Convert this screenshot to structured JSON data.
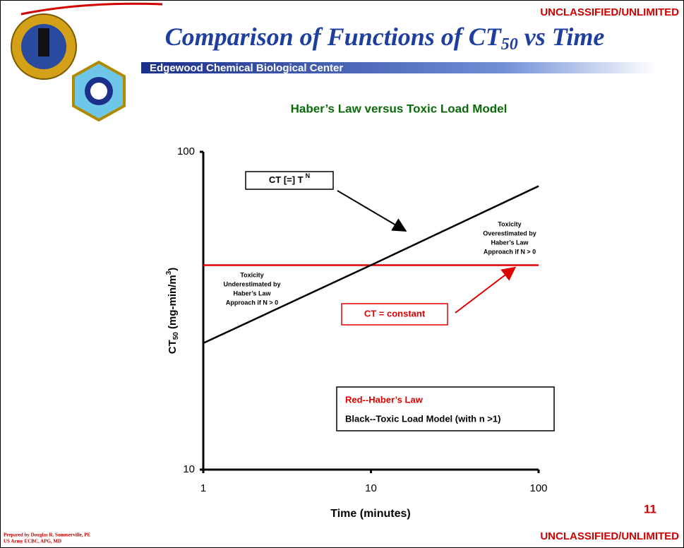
{
  "header": {
    "classification": "UNCLASSIFIED/UNLIMITED",
    "title": [
      "Comparison of Functions of CT",
      "50",
      " vs Time"
    ],
    "organization": "Edgewood Chemical Biological Center"
  },
  "chart_data": {
    "type": "line",
    "title": "Haber’s Law versus Toxic Load Model",
    "x": [
      1,
      10,
      100
    ],
    "series": [
      {
        "name": "Red--Haber’s Law",
        "color": "#e00000",
        "values": [
          44,
          44,
          44
        ]
      },
      {
        "name": "Black--Toxic Load Model (with n >1)",
        "color": "#000000",
        "values": [
          25,
          44,
          78
        ]
      }
    ],
    "xlim": [
      1,
      100
    ],
    "ylim": [
      10,
      100
    ],
    "xticks": [
      1,
      10,
      100
    ],
    "yticks": [
      10,
      100
    ],
    "log_x": true,
    "log_y": true,
    "x_label": "Time (minutes)",
    "y_label": [
      "CT",
      "50",
      " (mg-min/m",
      "3",
      ")"
    ],
    "annotations": {
      "power_box": [
        "CT [=] T",
        "N"
      ],
      "constant_box": "CT = constant",
      "note_left": [
        "Toxicity",
        "Underestimated by",
        "Haber’s Law",
        "Approach if N > 0"
      ],
      "note_right": [
        "Toxicity",
        "Overestimated by",
        "Haber’s Law",
        "Approach if N > 0"
      ]
    }
  },
  "footer": {
    "page_number": "11",
    "author": [
      "Prepared by Douglas R. Sommerville, PE",
      "US Army ECBC, APG, MD"
    ],
    "classification": "UNCLASSIFIED/UNLIMITED"
  }
}
